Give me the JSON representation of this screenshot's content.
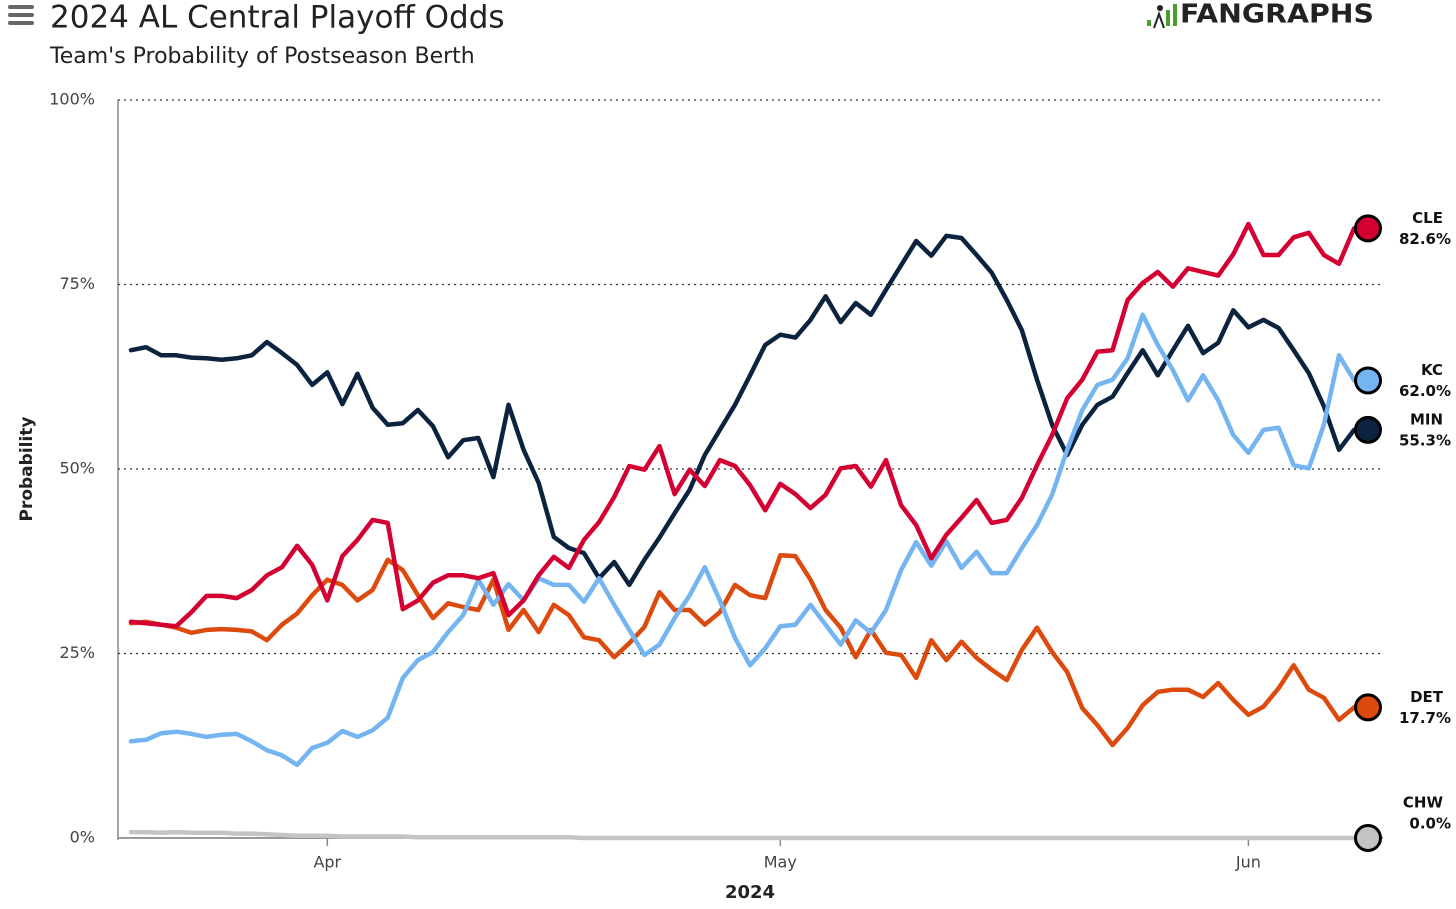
{
  "chart_data": {
    "type": "line",
    "title": "2024 AL Central Playoff Odds",
    "subtitle": "Team's Probability of Postseason Berth",
    "logo": "FANGRAPHS",
    "x_label": "2024",
    "y_label": "Probability",
    "ylim": [
      0,
      100
    ],
    "yticks": [
      {
        "value": 0,
        "label": "0%"
      },
      {
        "value": 25,
        "label": "25%"
      },
      {
        "value": 50,
        "label": "50%"
      },
      {
        "value": 75,
        "label": "75%"
      },
      {
        "value": 100,
        "label": "100%"
      }
    ],
    "grid": true,
    "categories": [
      null,
      null,
      null,
      null,
      null,
      null,
      null,
      null,
      null,
      null,
      null,
      null,
      null,
      "Apr",
      null,
      null,
      null,
      null,
      null,
      null,
      null,
      null,
      null,
      null,
      null,
      null,
      null,
      null,
      null,
      null,
      null,
      null,
      null,
      null,
      null,
      null,
      null,
      null,
      null,
      null,
      null,
      null,
      null,
      "May",
      null,
      null,
      null,
      null,
      null,
      null,
      null,
      null,
      null,
      null,
      null,
      null,
      null,
      null,
      null,
      null,
      null,
      null,
      null,
      null,
      null,
      null,
      null,
      null,
      null,
      null,
      null,
      null,
      null,
      null,
      "Jun",
      null,
      null,
      null,
      null,
      null,
      null,
      null
    ],
    "series": [
      {
        "name": "CLE",
        "color": "#d50032",
        "values": [
          29.3,
          29.1,
          28.9,
          28.7,
          30.6,
          32.8,
          32.8,
          32.5,
          33.6,
          35.6,
          36.7,
          39.6,
          37.0,
          32.2,
          38.2,
          40.4,
          43.1,
          42.7,
          31.0,
          32.2,
          34.6,
          35.6,
          35.6,
          35.2,
          35.9,
          30.2,
          32.2,
          35.6,
          38.1,
          36.6,
          40.4,
          42.8,
          46.2,
          50.4,
          49.9,
          53.1,
          46.6,
          49.9,
          47.7,
          51.2,
          50.4,
          47.8,
          44.4,
          48.0,
          46.6,
          44.7,
          46.5,
          50.1,
          50.4,
          47.6,
          51.2,
          45.1,
          42.4,
          37.9,
          41.1,
          43.4,
          45.8,
          42.7,
          43.1,
          46.1,
          50.5,
          54.6,
          59.6,
          62.1,
          65.9,
          66.1,
          72.9,
          75.2,
          76.7,
          74.7,
          77.2,
          76.7,
          76.2,
          79.1,
          83.2,
          79.0,
          79.0,
          81.4,
          82.0,
          79.0,
          77.8,
          82.6
        ],
        "value_labels": [
          null,
          null,
          null,
          null,
          null,
          null,
          null,
          null,
          null,
          null,
          null,
          null,
          null,
          null,
          null,
          null,
          null,
          null,
          null,
          null,
          null,
          null,
          null,
          null,
          null,
          null,
          null,
          null,
          null,
          null,
          null,
          null,
          null,
          null,
          null,
          null,
          null,
          null,
          null,
          null,
          null,
          null,
          null,
          null,
          null,
          null,
          null,
          null,
          null,
          null,
          null,
          null,
          null,
          null,
          null,
          null,
          null,
          null,
          null,
          null,
          null,
          null,
          null,
          null,
          null,
          null,
          null,
          null,
          null,
          null,
          null,
          null,
          null,
          null,
          null,
          null,
          null,
          null,
          null,
          null,
          null,
          "82.6%"
        ]
      },
      {
        "name": "KC",
        "color": "#74b4f1",
        "values": [
          13.1,
          13.3,
          14.2,
          14.4,
          14.1,
          13.7,
          14.0,
          14.1,
          13.1,
          11.9,
          11.2,
          9.9,
          12.2,
          12.9,
          14.5,
          13.7,
          14.6,
          16.3,
          21.7,
          24.1,
          25.2,
          27.9,
          30.2,
          35.0,
          31.6,
          34.4,
          32.2,
          35.2,
          34.3,
          34.3,
          32.0,
          35.2,
          31.6,
          28.2,
          24.8,
          26.2,
          29.8,
          32.9,
          36.7,
          32.2,
          27.1,
          23.4,
          25.7,
          28.7,
          28.9,
          31.6,
          28.9,
          26.2,
          29.5,
          27.8,
          30.9,
          36.3,
          40.1,
          36.9,
          40.2,
          36.6,
          38.8,
          35.9,
          35.9,
          39.3,
          42.4,
          46.5,
          52.6,
          58.0,
          61.4,
          62.1,
          65.0,
          70.9,
          66.8,
          63.4,
          59.3,
          62.7,
          59.3,
          54.6,
          52.2,
          55.3,
          55.6,
          50.5,
          50.1,
          56.0,
          65.4,
          62.0
        ],
        "value_labels": [
          null,
          null,
          null,
          null,
          null,
          null,
          null,
          null,
          null,
          null,
          null,
          null,
          null,
          null,
          null,
          null,
          null,
          null,
          null,
          null,
          null,
          null,
          null,
          null,
          null,
          null,
          null,
          null,
          null,
          null,
          null,
          null,
          null,
          null,
          null,
          null,
          null,
          null,
          null,
          null,
          null,
          null,
          null,
          null,
          null,
          null,
          null,
          null,
          null,
          null,
          null,
          null,
          null,
          null,
          null,
          null,
          null,
          null,
          null,
          null,
          null,
          null,
          null,
          null,
          null,
          null,
          null,
          null,
          null,
          null,
          null,
          null,
          null,
          null,
          null,
          null,
          null,
          null,
          null,
          null,
          null,
          "62.0%"
        ]
      },
      {
        "name": "MIN",
        "color": "#0c2340",
        "values": [
          66.1,
          66.5,
          65.4,
          65.4,
          65.1,
          65.0,
          64.8,
          65.0,
          65.4,
          67.2,
          65.7,
          64.1,
          61.4,
          63.1,
          58.8,
          62.9,
          58.3,
          56.0,
          56.2,
          58.0,
          55.8,
          51.6,
          53.9,
          54.2,
          48.9,
          58.7,
          52.6,
          48.1,
          40.8,
          39.3,
          38.6,
          35.2,
          37.4,
          34.3,
          37.7,
          40.7,
          44.0,
          47.2,
          51.9,
          55.3,
          58.7,
          62.7,
          66.8,
          68.2,
          67.8,
          70.2,
          73.4,
          69.9,
          72.5,
          70.9,
          74.3,
          77.6,
          80.9,
          78.9,
          81.6,
          81.3,
          79.0,
          76.6,
          72.9,
          68.8,
          62.1,
          56.0,
          51.9,
          56.0,
          58.7,
          59.8,
          63.0,
          66.1,
          62.7,
          66.1,
          69.4,
          65.7,
          67.1,
          71.5,
          69.2,
          70.2,
          69.1,
          66.1,
          63.0,
          58.5,
          52.6,
          55.3
        ],
        "value_labels": [
          null,
          null,
          null,
          null,
          null,
          null,
          null,
          null,
          null,
          null,
          null,
          null,
          null,
          null,
          null,
          null,
          null,
          null,
          null,
          null,
          null,
          null,
          null,
          null,
          null,
          null,
          null,
          null,
          null,
          null,
          null,
          null,
          null,
          null,
          null,
          null,
          null,
          null,
          null,
          null,
          null,
          null,
          null,
          null,
          null,
          null,
          null,
          null,
          null,
          null,
          null,
          null,
          null,
          null,
          null,
          null,
          null,
          null,
          null,
          null,
          null,
          null,
          null,
          null,
          null,
          null,
          null,
          null,
          null,
          null,
          null,
          null,
          null,
          null,
          null,
          null,
          null,
          null,
          null,
          null,
          null,
          "55.3%"
        ]
      },
      {
        "name": "DET",
        "color": "#dd4a0e",
        "values": [
          29.1,
          29.3,
          28.9,
          28.5,
          27.8,
          28.2,
          28.3,
          28.2,
          28.0,
          26.8,
          28.9,
          30.4,
          32.9,
          35.0,
          34.3,
          32.2,
          33.6,
          37.7,
          36.3,
          32.9,
          29.8,
          31.8,
          31.3,
          30.9,
          35.0,
          28.2,
          30.9,
          27.9,
          31.6,
          30.2,
          27.2,
          26.8,
          24.5,
          26.4,
          28.6,
          33.3,
          30.9,
          30.9,
          28.9,
          30.6,
          34.3,
          32.9,
          32.5,
          38.3,
          38.2,
          35.0,
          30.9,
          28.5,
          24.5,
          28.2,
          25.1,
          24.8,
          21.7,
          26.8,
          24.1,
          26.6,
          24.4,
          22.8,
          21.4,
          25.5,
          28.5,
          25.2,
          22.5,
          17.6,
          15.3,
          12.6,
          14.9,
          18.0,
          19.8,
          20.1,
          20.1,
          19.1,
          21.0,
          18.7,
          16.7,
          17.8,
          20.3,
          23.4,
          20.1,
          19.0,
          16.0,
          17.7
        ],
        "value_labels": [
          null,
          null,
          null,
          null,
          null,
          null,
          null,
          null,
          null,
          null,
          null,
          null,
          null,
          null,
          null,
          null,
          null,
          null,
          null,
          null,
          null,
          null,
          null,
          null,
          null,
          null,
          null,
          null,
          null,
          null,
          null,
          null,
          null,
          null,
          null,
          null,
          null,
          null,
          null,
          null,
          null,
          null,
          null,
          null,
          null,
          null,
          null,
          null,
          null,
          null,
          null,
          null,
          null,
          null,
          null,
          null,
          null,
          null,
          null,
          null,
          null,
          null,
          null,
          null,
          null,
          null,
          null,
          null,
          null,
          null,
          null,
          null,
          null,
          null,
          null,
          null,
          null,
          null,
          null,
          null,
          null,
          "17.7%"
        ]
      },
      {
        "name": "CHW",
        "color": "#c4c4c4",
        "values": [
          0.8,
          0.8,
          0.7,
          0.8,
          0.7,
          0.7,
          0.7,
          0.6,
          0.6,
          0.5,
          0.4,
          0.3,
          0.3,
          0.3,
          0.2,
          0.2,
          0.2,
          0.2,
          0.2,
          0.1,
          0.1,
          0.1,
          0.1,
          0.1,
          0.1,
          0.1,
          0.1,
          0.1,
          0.1,
          0.1,
          0.0,
          0.0,
          0.0,
          0.0,
          0.0,
          0.0,
          0.0,
          0.0,
          0.0,
          0.0,
          0.0,
          0.0,
          0.0,
          0.0,
          0.0,
          0.0,
          0.0,
          0.0,
          0.0,
          0.0,
          0.0,
          0.0,
          0.0,
          0.0,
          0.0,
          0.0,
          0.0,
          0.0,
          0.0,
          0.0,
          0.0,
          0.0,
          0.0,
          0.0,
          0.0,
          0.0,
          0.0,
          0.0,
          0.0,
          0.0,
          0.0,
          0.0,
          0.0,
          0.0,
          0.0,
          0.0,
          0.0,
          0.0,
          0.0,
          0.0,
          0.0,
          0.0
        ],
        "value_labels": [
          null,
          null,
          null,
          null,
          null,
          null,
          null,
          null,
          null,
          null,
          null,
          null,
          null,
          null,
          null,
          null,
          null,
          null,
          null,
          null,
          null,
          null,
          null,
          null,
          null,
          null,
          null,
          null,
          null,
          null,
          null,
          null,
          null,
          null,
          null,
          null,
          null,
          null,
          null,
          null,
          null,
          null,
          null,
          null,
          null,
          null,
          null,
          null,
          null,
          null,
          null,
          null,
          null,
          null,
          null,
          null,
          null,
          null,
          null,
          null,
          null,
          null,
          null,
          null,
          null,
          null,
          null,
          null,
          null,
          null,
          null,
          null,
          null,
          null,
          null,
          null,
          null,
          null,
          null,
          null,
          null,
          "0.0%"
        ]
      }
    ]
  }
}
